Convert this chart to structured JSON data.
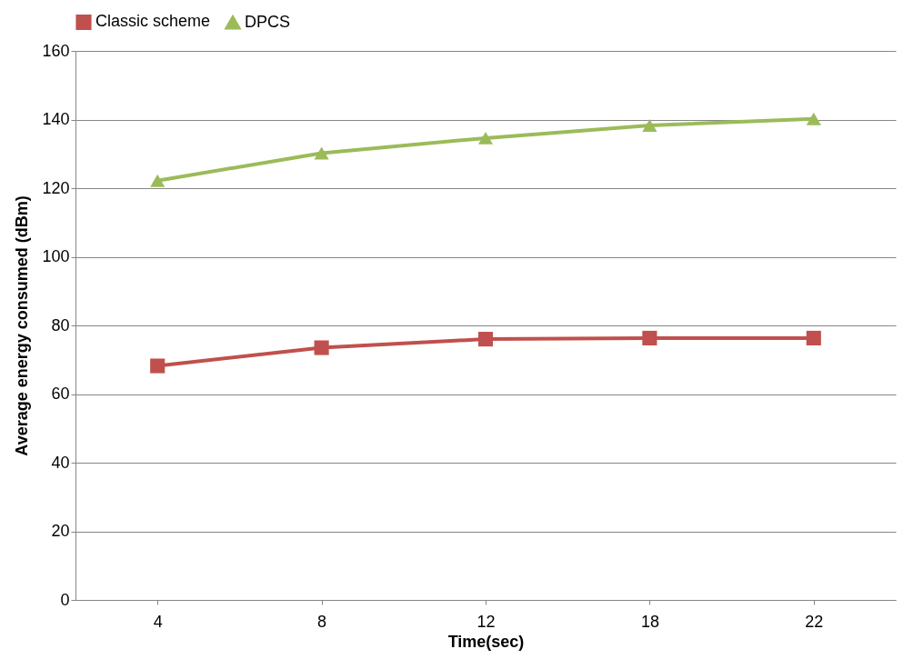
{
  "chart_data": {
    "type": "line",
    "xlabel": "Time(sec)",
    "ylabel": "Average energy consumed (dBm)",
    "categories": [
      "4",
      "8",
      "12",
      "18",
      "22"
    ],
    "series": [
      {
        "name": "Classic scheme",
        "color": "#c0504d",
        "marker": "square",
        "values": [
          68.2,
          73.5,
          76,
          76.3,
          76.3
        ]
      },
      {
        "name": "DPCS",
        "color": "#9bbb59",
        "marker": "triangle",
        "values": [
          122.2,
          130.2,
          134.6,
          138.3,
          140.2
        ]
      }
    ],
    "ylim": [
      0,
      160
    ],
    "yticks": [
      0,
      20,
      40,
      60,
      80,
      100,
      120,
      140,
      160
    ],
    "grid": "y",
    "legend": "top"
  }
}
